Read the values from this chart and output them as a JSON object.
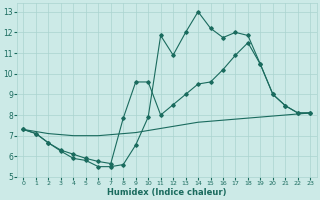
{
  "xlabel": "Humidex (Indice chaleur)",
  "background_color": "#cceae7",
  "grid_color": "#aad4d0",
  "line_color": "#1a6b5e",
  "xlim": [
    -0.5,
    23.5
  ],
  "ylim": [
    5,
    13.4
  ],
  "xticks": [
    0,
    1,
    2,
    3,
    4,
    5,
    6,
    7,
    8,
    9,
    10,
    11,
    12,
    13,
    14,
    15,
    16,
    17,
    18,
    19,
    20,
    21,
    22,
    23
  ],
  "yticks": [
    5,
    6,
    7,
    8,
    9,
    10,
    11,
    12,
    13
  ],
  "series1_x": [
    0,
    1,
    2,
    3,
    4,
    5,
    6,
    7,
    8,
    9,
    10,
    11,
    12,
    13,
    14,
    15,
    16,
    17,
    18,
    19,
    20,
    21,
    22,
    23
  ],
  "series1_y": [
    7.3,
    7.1,
    6.65,
    6.25,
    5.9,
    5.8,
    5.5,
    5.5,
    5.6,
    6.55,
    7.9,
    11.85,
    10.9,
    12.0,
    13.0,
    12.2,
    11.75,
    12.0,
    11.85,
    10.45,
    9.0,
    8.45,
    8.1,
    8.1
  ],
  "series2_x": [
    0,
    1,
    2,
    3,
    4,
    5,
    6,
    7,
    8,
    9,
    10,
    11,
    12,
    13,
    14,
    15,
    16,
    17,
    18,
    19,
    20,
    21,
    22,
    23
  ],
  "series2_y": [
    7.3,
    7.1,
    6.65,
    6.3,
    6.1,
    5.9,
    5.75,
    5.65,
    7.85,
    9.6,
    9.6,
    8.0,
    8.5,
    9.0,
    9.5,
    9.6,
    10.2,
    10.9,
    11.5,
    10.45,
    9.0,
    8.45,
    8.1,
    8.1
  ],
  "series3_x": [
    0,
    1,
    2,
    3,
    4,
    5,
    6,
    7,
    8,
    9,
    10,
    11,
    12,
    13,
    14,
    15,
    16,
    17,
    18,
    19,
    20,
    21,
    22,
    23
  ],
  "series3_y": [
    7.3,
    7.2,
    7.1,
    7.05,
    7.0,
    7.0,
    7.0,
    7.05,
    7.1,
    7.15,
    7.25,
    7.35,
    7.45,
    7.55,
    7.65,
    7.7,
    7.75,
    7.8,
    7.85,
    7.9,
    7.95,
    8.0,
    8.05,
    8.1
  ]
}
